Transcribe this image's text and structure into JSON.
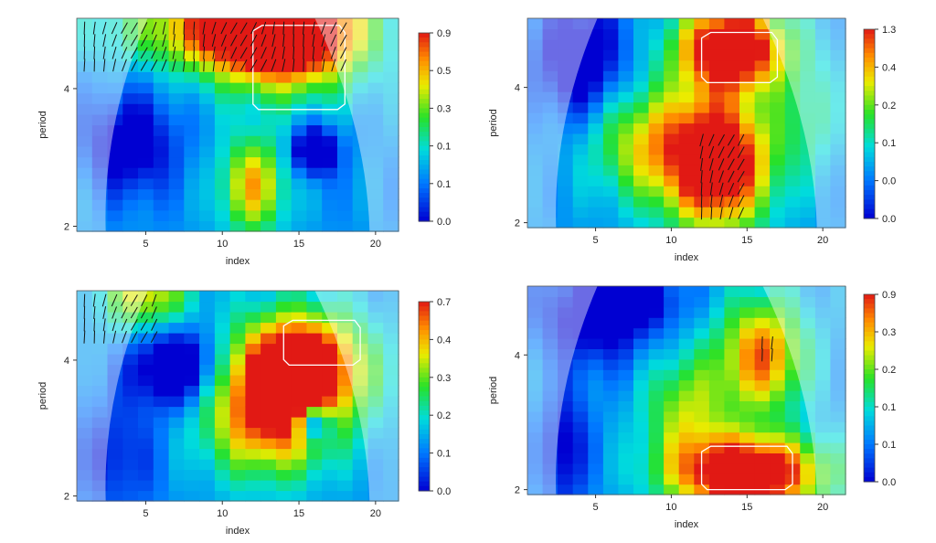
{
  "chart_data": [
    {
      "type": "heatmap",
      "title": "",
      "xlabel": "index",
      "ylabel": "period",
      "x_ticks": [
        "5",
        "10",
        "15",
        "20"
      ],
      "x_tick_values": [
        5,
        10,
        15,
        20
      ],
      "y_ticks": [
        "2",
        "4"
      ],
      "y_tick_values": [
        2,
        4
      ],
      "xlim": [
        0.5,
        21.5
      ],
      "ylim": [
        1.95,
        5.7
      ],
      "y_scale": "log2",
      "colorbar_labels": [
        "0.9",
        "0.5",
        "0.3",
        "0.1",
        "0.1",
        "0.0"
      ],
      "grid": false,
      "significant_region": {
        "x": [
          12,
          18
        ],
        "y": [
          3.6,
          5.5
        ]
      },
      "arrow_region": {
        "x": [
          1,
          18
        ],
        "y": [
          4.5,
          5.5
        ]
      }
    },
    {
      "type": "heatmap",
      "title": "",
      "xlabel": "index",
      "ylabel": "period",
      "x_ticks": [
        "5",
        "10",
        "15",
        "20"
      ],
      "x_tick_values": [
        5,
        10,
        15,
        20
      ],
      "y_ticks": [
        "2",
        "4"
      ],
      "y_tick_values": [
        2,
        4
      ],
      "xlim": [
        0.5,
        21.5
      ],
      "ylim": [
        1.95,
        5.7
      ],
      "y_scale": "log2",
      "colorbar_labels": [
        "1.3",
        "0.4",
        "0.2",
        "0.1",
        "0.0",
        "0.0"
      ],
      "grid": false,
      "significant_region": {
        "x": [
          12,
          17
        ],
        "y": [
          4.1,
          5.3
        ]
      },
      "arrow_region": {
        "x": [
          12,
          15
        ],
        "y": [
          2.1,
          3.2
        ]
      }
    },
    {
      "type": "heatmap",
      "title": "",
      "xlabel": "index",
      "ylabel": "period",
      "x_ticks": [
        "5",
        "10",
        "15",
        "20"
      ],
      "x_tick_values": [
        5,
        10,
        15,
        20
      ],
      "y_ticks": [
        "2",
        "4"
      ],
      "y_tick_values": [
        2,
        4
      ],
      "xlim": [
        0.5,
        21.5
      ],
      "ylim": [
        1.95,
        5.7
      ],
      "y_scale": "log2",
      "colorbar_labels": [
        "0.7",
        "0.4",
        "0.3",
        "0.2",
        "0.1",
        "0.0"
      ],
      "grid": false,
      "significant_region": {
        "x": [
          14,
          19
        ],
        "y": [
          3.9,
          4.9
        ]
      },
      "arrow_region": {
        "x": [
          1,
          6
        ],
        "y": [
          4.5,
          5.5
        ]
      }
    },
    {
      "type": "heatmap",
      "title": "",
      "xlabel": "index",
      "ylabel": "period",
      "x_ticks": [
        "5",
        "10",
        "15",
        "20"
      ],
      "x_tick_values": [
        5,
        10,
        15,
        20
      ],
      "y_ticks": [
        "2",
        "4"
      ],
      "y_tick_values": [
        2,
        4
      ],
      "xlim": [
        0.5,
        21.5
      ],
      "ylim": [
        1.95,
        5.7
      ],
      "y_scale": "log2",
      "colorbar_labels": [
        "0.9",
        "0.3",
        "0.2",
        "0.1",
        "0.1",
        "0.0"
      ],
      "grid": false,
      "significant_region": {
        "x": [
          12,
          18
        ],
        "y": [
          2.0,
          2.5
        ]
      },
      "arrow_region": {
        "x": [
          16,
          17
        ],
        "y": [
          4.0,
          4.4
        ]
      }
    }
  ]
}
